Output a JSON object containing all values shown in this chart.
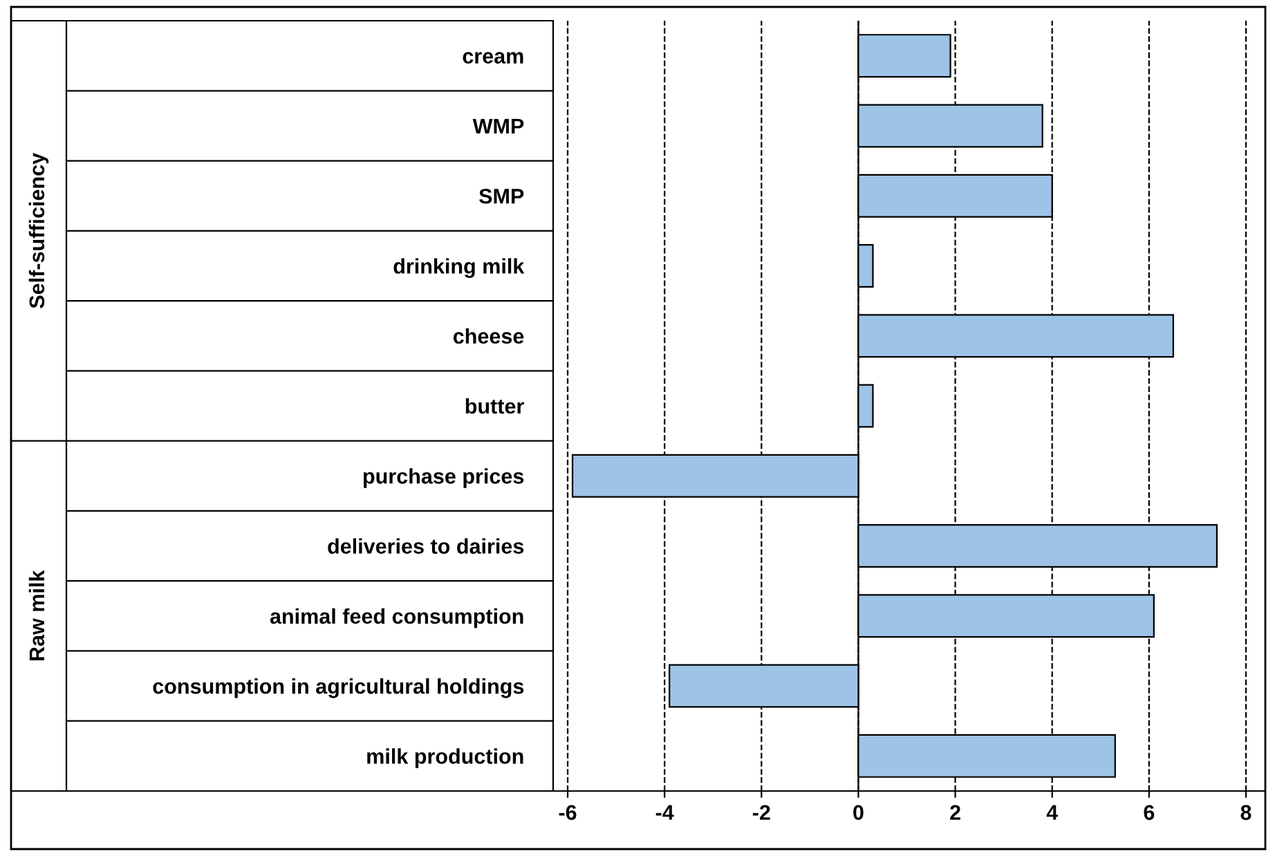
{
  "chart_data": {
    "type": "bar",
    "orientation": "horizontal",
    "categories": [
      "cream",
      "WMP",
      "SMP",
      "drinking milk",
      "cheese",
      "butter",
      "purchase prices",
      "deliveries to dairies",
      "animal feed consumption",
      "consumption in agricultural holdings",
      "milk production"
    ],
    "values": [
      1.9,
      3.8,
      4.0,
      0.3,
      6.5,
      0.3,
      -5.9,
      7.4,
      6.1,
      -3.9,
      5.3
    ],
    "color": "#9dc3e6",
    "xlim": [
      -6.3,
      8.4
    ],
    "xticks": [
      -6,
      -4,
      -2,
      0,
      2,
      4,
      6,
      8
    ],
    "grid": "x",
    "line_style": "dashed",
    "annotations": [
      "Self-sufficiency",
      "Raw milk"
    ]
  }
}
